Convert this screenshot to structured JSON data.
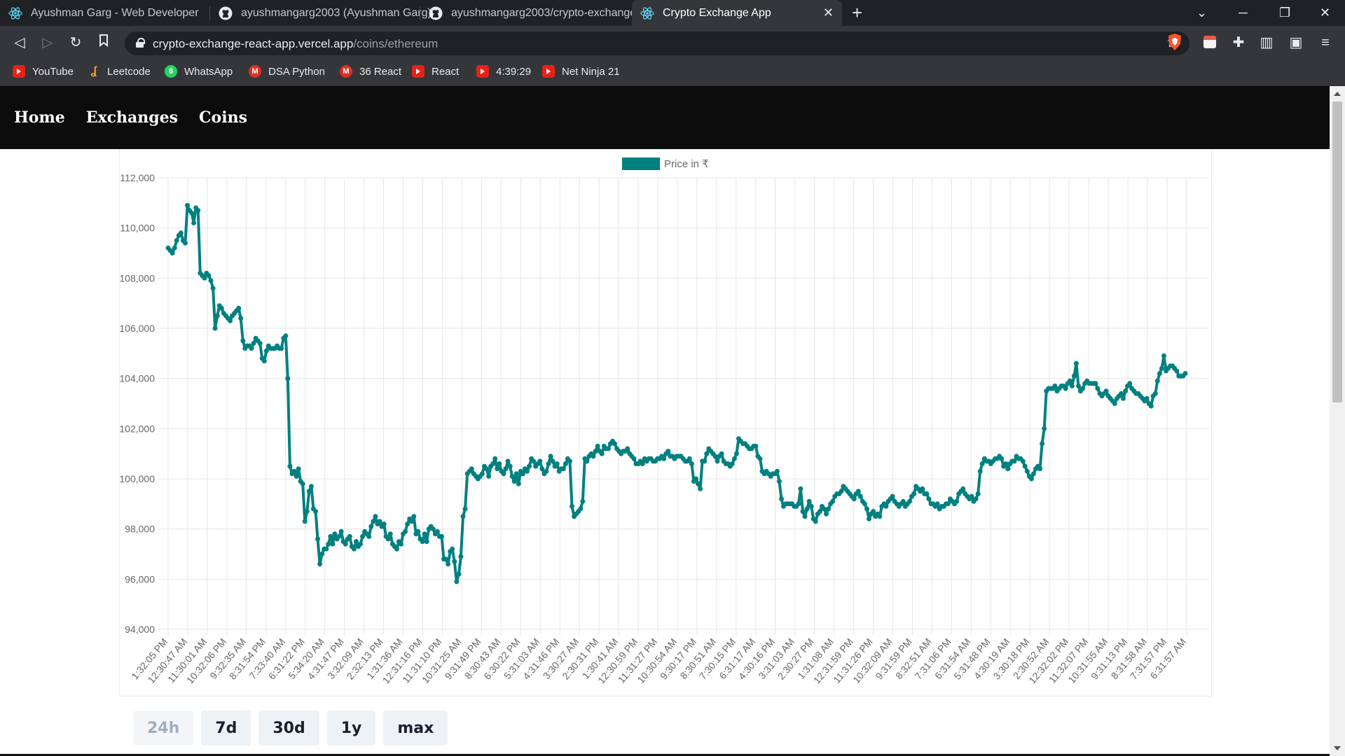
{
  "browser": {
    "tabs": [
      {
        "title": "Ayushman Garg - Web Developer",
        "icon": "react-icon",
        "active": false
      },
      {
        "title": "ayushmangarg2003 (Ayushman Garg)",
        "icon": "github-icon",
        "active": false
      },
      {
        "title": "ayushmangarg2003/crypto-exchange-",
        "icon": "github-icon",
        "active": false
      },
      {
        "title": "Crypto Exchange App",
        "icon": "react-icon",
        "active": true
      }
    ],
    "url_host": "crypto-exchange-react-app.vercel.app",
    "url_path": "/coins/ethereum",
    "bookmarks": [
      {
        "label": "YouTube",
        "icon": "youtube-icon"
      },
      {
        "label": "Leetcode",
        "icon": "leetcode-icon"
      },
      {
        "label": "WhatsApp",
        "icon": "whatsapp-icon"
      },
      {
        "label": "DSA Python",
        "icon": "gmail-icon"
      },
      {
        "label": "36 React",
        "icon": "gmail-icon"
      },
      {
        "label": "React",
        "icon": "youtube-icon"
      },
      {
        "label": "4:39:29",
        "icon": "youtube-icon"
      },
      {
        "label": "Net Ninja 21",
        "icon": "youtube-icon"
      }
    ]
  },
  "nav": {
    "home": "Home",
    "exchanges": "Exchanges",
    "coins": "Coins"
  },
  "buttons": [
    {
      "label": "24h",
      "disabled": true
    },
    {
      "label": "7d",
      "disabled": false
    },
    {
      "label": "30d",
      "disabled": false
    },
    {
      "label": "1y",
      "disabled": false
    },
    {
      "label": "max",
      "disabled": false
    }
  ],
  "colors": {
    "series": "#008080"
  },
  "chart_data": {
    "type": "line",
    "legend": "Price in ₹",
    "legend_position": "top",
    "ylim": [
      94000,
      112000
    ],
    "y_ticks": [
      "94,000",
      "96,000",
      "98,000",
      "100,000",
      "102,000",
      "104,000",
      "106,000",
      "108,000",
      "110,000",
      "112,000"
    ],
    "x_tick_labels": [
      "1:32:05 PM",
      "12:30:47 AM",
      "11:30:01 AM",
      "10:32:06 PM",
      "9:32:35 AM",
      "8:31:54 PM",
      "7:33:40 AM",
      "6:31:22 PM",
      "5:34:20 AM",
      "4:31:47 PM",
      "3:32:09 AM",
      "2:32:13 PM",
      "1:31:36 AM",
      "12:31:16 PM",
      "11:31:10 PM",
      "10:31:25 AM",
      "9:31:49 PM",
      "8:30:43 AM",
      "6:30:22 PM",
      "5:31:03 AM",
      "4:31:46 PM",
      "3:30:27 AM",
      "2:30:31 PM",
      "1:30:41 AM",
      "12:30:59 PM",
      "11:31:27 PM",
      "10:30:54 AM",
      "9:30:17 PM",
      "8:30:51 AM",
      "7:30:15 PM",
      "6:31:17 AM",
      "4:30:16 PM",
      "3:31:03 AM",
      "2:30:27 PM",
      "1:31:08 AM",
      "12:31:59 PM",
      "11:31:26 PM",
      "10:32:09 AM",
      "9:31:59 PM",
      "8:32:51 AM",
      "7:31:06 PM",
      "6:31:54 AM",
      "5:31:48 PM",
      "4:30:19 AM",
      "3:30:18 PM",
      "2:30:52 AM",
      "12:32:02 PM",
      "11:32:07 PM",
      "10:31:55 AM",
      "9:31:13 PM",
      "8:31:58 AM",
      "7:31:57 PM",
      "6:31:57 AM"
    ],
    "grid": true,
    "values": [
      109200,
      109100,
      109000,
      109200,
      109500,
      109700,
      109800,
      109500,
      109400,
      110900,
      110700,
      110600,
      110200,
      110800,
      110700,
      108200,
      108100,
      108000,
      108200,
      108100,
      107900,
      107600,
      106000,
      106500,
      106900,
      106800,
      106600,
      106500,
      106400,
      106300,
      106500,
      106600,
      106700,
      106800,
      106400,
      105500,
      105200,
      105300,
      105300,
      105200,
      105400,
      105600,
      105500,
      105400,
      104800,
      104700,
      105100,
      105300,
      105200,
      105200,
      105200,
      105300,
      105200,
      105200,
      105600,
      105700,
      104000,
      100500,
      100200,
      100300,
      100100,
      100400,
      99900,
      99800,
      98300,
      98700,
      99500,
      99700,
      98800,
      98700,
      97600,
      96600,
      97000,
      97200,
      97200,
      97400,
      97700,
      97400,
      97800,
      97600,
      97700,
      97900,
      97500,
      97400,
      97600,
      97700,
      97300,
      97200,
      97500,
      97300,
      97400,
      97700,
      97900,
      97800,
      97700,
      98100,
      98300,
      98500,
      98200,
      98300,
      98100,
      98200,
      97700,
      97600,
      97800,
      97400,
      97300,
      97200,
      97500,
      97400,
      97800,
      97900,
      98200,
      98400,
      98300,
      98500,
      97800,
      97900,
      97600,
      97500,
      97800,
      97500,
      98000,
      98100,
      98000,
      97800,
      97900,
      97700,
      97700,
      96800,
      96800,
      96600,
      97100,
      97200,
      96700,
      95900,
      96200,
      96900,
      98500,
      98800,
      100200,
      100300,
      100400,
      100200,
      100100,
      100000,
      100100,
      100200,
      100500,
      100400,
      100100,
      100500,
      100600,
      100800,
      100400,
      100600,
      100300,
      100200,
      100400,
      100700,
      100500,
      100100,
      99900,
      100200,
      99800,
      100300,
      100200,
      100400,
      100300,
      100500,
      100800,
      100700,
      100500,
      100600,
      100700,
      100400,
      100200,
      100300,
      100600,
      100900,
      100700,
      100500,
      100600,
      100300,
      100400,
      100400,
      100600,
      100800,
      100700,
      98900,
      98500,
      98600,
      98700,
      98800,
      99100,
      100800,
      100700,
      100900,
      101000,
      100900,
      101100,
      101300,
      101100,
      101000,
      101300,
      101200,
      101200,
      101400,
      101500,
      101400,
      101200,
      101100,
      101000,
      101100,
      101100,
      101200,
      101000,
      100900,
      100800,
      100600,
      100600,
      100700,
      100600,
      100800,
      100700,
      100800,
      100800,
      100700,
      100700,
      100800,
      100800,
      100900,
      100800,
      101000,
      101100,
      100900,
      100900,
      100800,
      100900,
      100900,
      100900,
      100800,
      100700,
      100700,
      100800,
      100600,
      99900,
      100000,
      99800,
      99600,
      100700,
      100700,
      101000,
      101200,
      101100,
      101000,
      100900,
      100700,
      100900,
      101000,
      100700,
      100600,
      100600,
      100500,
      100600,
      100800,
      101000,
      101600,
      101500,
      101400,
      101400,
      101300,
      101200,
      101200,
      101300,
      101300,
      100900,
      100800,
      100300,
      100200,
      100300,
      100200,
      100100,
      100200,
      100200,
      100300,
      99900,
      99200,
      98900,
      99000,
      99000,
      99000,
      99000,
      98900,
      98900,
      99000,
      99600,
      98700,
      98500,
      98800,
      99100,
      98900,
      98400,
      98300,
      98600,
      98700,
      98900,
      98800,
      98600,
      98800,
      99000,
      99100,
      99300,
      99400,
      99400,
      99500,
      99700,
      99600,
      99500,
      99400,
      99300,
      99200,
      99400,
      99500,
      99300,
      99100,
      99000,
      98800,
      98400,
      98600,
      98700,
      98500,
      98600,
      98500,
      98900,
      99000,
      98900,
      99100,
      99200,
      99300,
      99100,
      99000,
      98900,
      99000,
      99100,
      98900,
      99000,
      99100,
      99300,
      99400,
      99700,
      99600,
      99500,
      99600,
      99400,
      99400,
      99200,
      99000,
      99000,
      98900,
      99000,
      98800,
      98900,
      98900,
      99000,
      99000,
      99200,
      99100,
      99000,
      99100,
      99400,
      99500,
      99600,
      99400,
      99300,
      99200,
      99300,
      99100,
      99200,
      99400,
      100300,
      100600,
      100800,
      100700,
      100700,
      100600,
      100700,
      100800,
      100800,
      100900,
      100800,
      100500,
      100600,
      100400,
      100600,
      100700,
      100700,
      100900,
      100800,
      100800,
      100700,
      100500,
      100300,
      100100,
      100000,
      100200,
      100400,
      100500,
      100400,
      101400,
      102000,
      103500,
      103600,
      103600,
      103600,
      103700,
      103500,
      103600,
      103700,
      103700,
      103600,
      103800,
      103900,
      103700,
      104100,
      104600,
      103700,
      103500,
      103600,
      103800,
      103900,
      103800,
      103800,
      103800,
      103800,
      103600,
      103400,
      103300,
      103400,
      103500,
      103300,
      103200,
      103100,
      103000,
      103200,
      103300,
      103400,
      103200,
      103500,
      103700,
      103800,
      103600,
      103500,
      103400,
      103400,
      103300,
      103200,
      103100,
      103200,
      103000,
      102900,
      103300,
      103400,
      103900,
      104200,
      104400,
      104900,
      104300,
      104400,
      104500,
      104500,
      104400,
      104300,
      104100,
      104100,
      104100,
      104200
    ]
  }
}
